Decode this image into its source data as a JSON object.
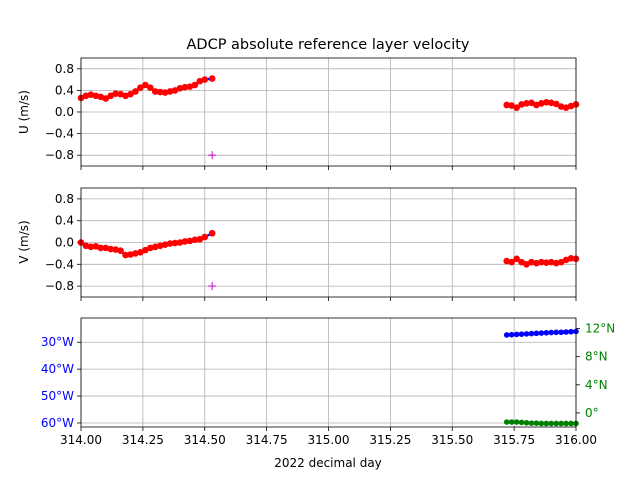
{
  "chart_data": [
    {
      "type": "scatter",
      "title": "ADCP absolute reference layer velocity",
      "ylabel": "U (m/s)",
      "xlim": [
        314.0,
        316.0
      ],
      "ylim": [
        -1.0,
        1.0
      ],
      "yticks": [
        0.8,
        0.4,
        0.0,
        -0.4,
        -0.8
      ],
      "ytick_labels": [
        "0.8",
        "0.4",
        "0.0",
        "−0.4",
        "−0.8"
      ],
      "grid": true,
      "colors": {
        "points": "#ff0000",
        "line": "#0000ff",
        "flag": "#cc00cc"
      },
      "series": [
        {
          "x": [
            314.0,
            314.02,
            314.04,
            314.06,
            314.08,
            314.1,
            314.12,
            314.14,
            314.16,
            314.18,
            314.2,
            314.22,
            314.24,
            314.26,
            314.28,
            314.3,
            314.32,
            314.34,
            314.36,
            314.38,
            314.4,
            314.42,
            314.44,
            314.46,
            314.48,
            314.5,
            314.53
          ],
          "y": [
            0.26,
            0.3,
            0.32,
            0.3,
            0.28,
            0.25,
            0.3,
            0.34,
            0.33,
            0.3,
            0.33,
            0.38,
            0.45,
            0.5,
            0.45,
            0.38,
            0.37,
            0.36,
            0.38,
            0.4,
            0.44,
            0.46,
            0.47,
            0.5,
            0.57,
            0.6,
            0.62
          ]
        },
        {
          "x": [
            315.72,
            315.74,
            315.76,
            315.78,
            315.8,
            315.82,
            315.84,
            315.86,
            315.88,
            315.9,
            315.92,
            315.94,
            315.96,
            315.98,
            316.0
          ],
          "y": [
            0.13,
            0.12,
            0.08,
            0.14,
            0.16,
            0.17,
            0.13,
            0.16,
            0.18,
            0.17,
            0.15,
            0.1,
            0.08,
            0.11,
            0.14
          ]
        }
      ],
      "flag_points": [
        {
          "x": 314.53,
          "y": -0.8
        }
      ]
    },
    {
      "type": "scatter",
      "ylabel": "V (m/s)",
      "xlim": [
        314.0,
        316.0
      ],
      "ylim": [
        -1.0,
        1.0
      ],
      "yticks": [
        0.8,
        0.4,
        0.0,
        -0.4,
        -0.8
      ],
      "ytick_labels": [
        "0.8",
        "0.4",
        "0.0",
        "−0.4",
        "−0.8"
      ],
      "grid": true,
      "colors": {
        "points": "#ff0000",
        "line": "#0000ff",
        "flag": "#cc00cc"
      },
      "series": [
        {
          "x": [
            314.0,
            314.02,
            314.04,
            314.06,
            314.08,
            314.1,
            314.12,
            314.14,
            314.16,
            314.18,
            314.2,
            314.22,
            314.24,
            314.26,
            314.28,
            314.3,
            314.32,
            314.34,
            314.36,
            314.38,
            314.4,
            314.42,
            314.44,
            314.46,
            314.48,
            314.5,
            314.53
          ],
          "y": [
            0.0,
            -0.06,
            -0.08,
            -0.07,
            -0.1,
            -0.1,
            -0.12,
            -0.13,
            -0.15,
            -0.23,
            -0.22,
            -0.2,
            -0.18,
            -0.14,
            -0.1,
            -0.08,
            -0.06,
            -0.04,
            -0.02,
            -0.01,
            0.0,
            0.02,
            0.03,
            0.05,
            0.06,
            0.1,
            0.17
          ]
        },
        {
          "x": [
            315.72,
            315.74,
            315.76,
            315.78,
            315.8,
            315.82,
            315.84,
            315.86,
            315.88,
            315.9,
            315.92,
            315.94,
            315.96,
            315.98,
            316.0
          ],
          "y": [
            -0.34,
            -0.36,
            -0.3,
            -0.36,
            -0.4,
            -0.36,
            -0.38,
            -0.36,
            -0.37,
            -0.36,
            -0.38,
            -0.36,
            -0.32,
            -0.29,
            -0.3
          ]
        }
      ],
      "flag_points": [
        {
          "x": 314.53,
          "y": -0.8
        }
      ]
    },
    {
      "type": "scatter",
      "xlabel": "2022 decimal day",
      "xlim": [
        314.0,
        316.0
      ],
      "xticks": [
        314.0,
        314.25,
        314.5,
        314.75,
        315.0,
        315.25,
        315.5,
        315.75,
        316.0
      ],
      "xtick_labels": [
        "314.00",
        "314.25",
        "314.50",
        "314.75",
        "315.00",
        "315.25",
        "315.50",
        "315.75",
        "316.00"
      ],
      "grid": true,
      "left_axis": {
        "quantity": "longitude (degrees east)",
        "color": "#0000ff",
        "ylim": [
          -61.5,
          -21.0
        ],
        "yticks": [
          -30,
          -40,
          -50,
          -60
        ],
        "ytick_labels": [
          "30°W",
          "40°W",
          "50°W",
          "60°W"
        ]
      },
      "right_axis": {
        "quantity": "latitude (degrees north)",
        "color": "#008000",
        "ylim": [
          -2.0,
          13.5
        ],
        "yticks": [
          12,
          8,
          4,
          0
        ],
        "ytick_labels": [
          "12°N",
          "8°N",
          "4°N",
          "0°"
        ]
      },
      "series": [
        {
          "axis": "left",
          "color": "#0000ff",
          "x": [
            315.72,
            315.74,
            315.76,
            315.78,
            315.8,
            315.82,
            315.84,
            315.86,
            315.88,
            315.9,
            315.92,
            315.94,
            315.96,
            315.98,
            316.0
          ],
          "y": [
            -27.3,
            -27.2,
            -27.1,
            -27.0,
            -26.9,
            -26.8,
            -26.7,
            -26.6,
            -26.5,
            -26.4,
            -26.3,
            -26.3,
            -26.2,
            -26.1,
            -26.0
          ]
        },
        {
          "axis": "right",
          "color": "#008000",
          "x": [
            315.72,
            315.74,
            315.76,
            315.78,
            315.8,
            315.82,
            315.84,
            315.86,
            315.88,
            315.9,
            315.92,
            315.94,
            315.96,
            315.98,
            316.0
          ],
          "y": [
            -1.3,
            -1.3,
            -1.3,
            -1.35,
            -1.4,
            -1.45,
            -1.45,
            -1.5,
            -1.5,
            -1.5,
            -1.5,
            -1.5,
            -1.5,
            -1.5,
            -1.5
          ]
        }
      ]
    }
  ]
}
